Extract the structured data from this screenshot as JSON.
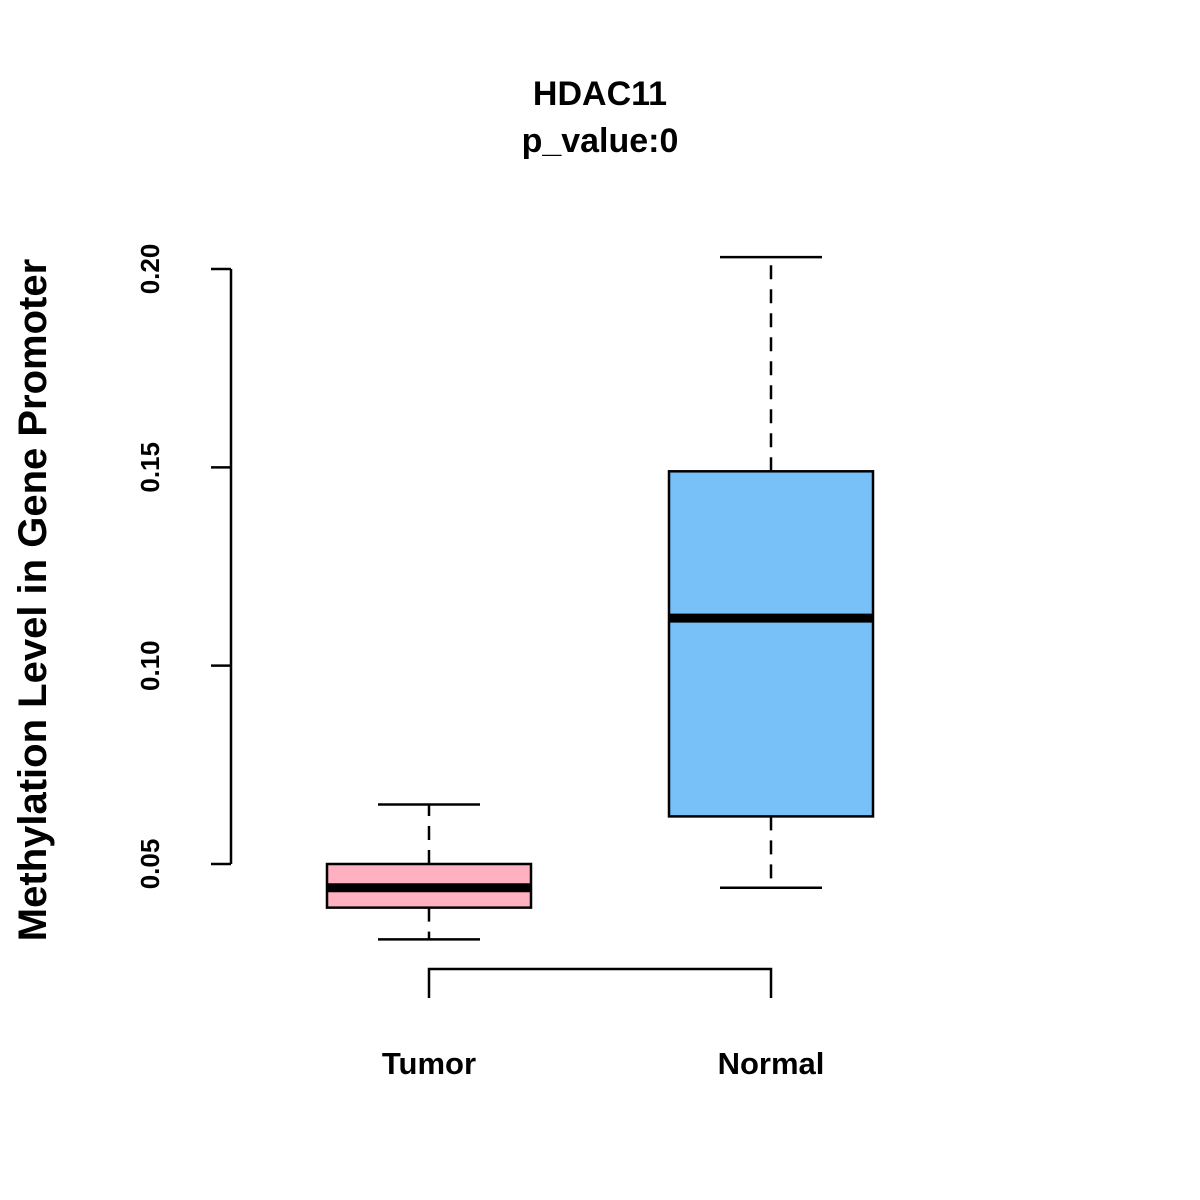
{
  "chart_data": {
    "type": "boxplot",
    "title": "HDAC11",
    "subtitle": "p_value:0",
    "xlabel": "",
    "ylabel": "Methylation Level in Gene Promoter",
    "ylim": [
      0.05,
      0.2
    ],
    "yticks": [
      "0.05",
      "0.10",
      "0.15",
      "0.20"
    ],
    "grid": false,
    "legend": "none",
    "categories": [
      "Tumor",
      "Normal"
    ],
    "series": [
      {
        "name": "Tumor",
        "color": "#FFB0C1",
        "whisker_low": 0.031,
        "q1": 0.039,
        "median": 0.044,
        "q3": 0.05,
        "whisker_high": 0.065
      },
      {
        "name": "Normal",
        "color": "#77C1F8",
        "whisker_low": 0.044,
        "q1": 0.062,
        "median": 0.112,
        "q3": 0.149,
        "whisker_high": 0.203
      }
    ],
    "comparison_bracket": [
      "Tumor",
      "Normal"
    ]
  }
}
